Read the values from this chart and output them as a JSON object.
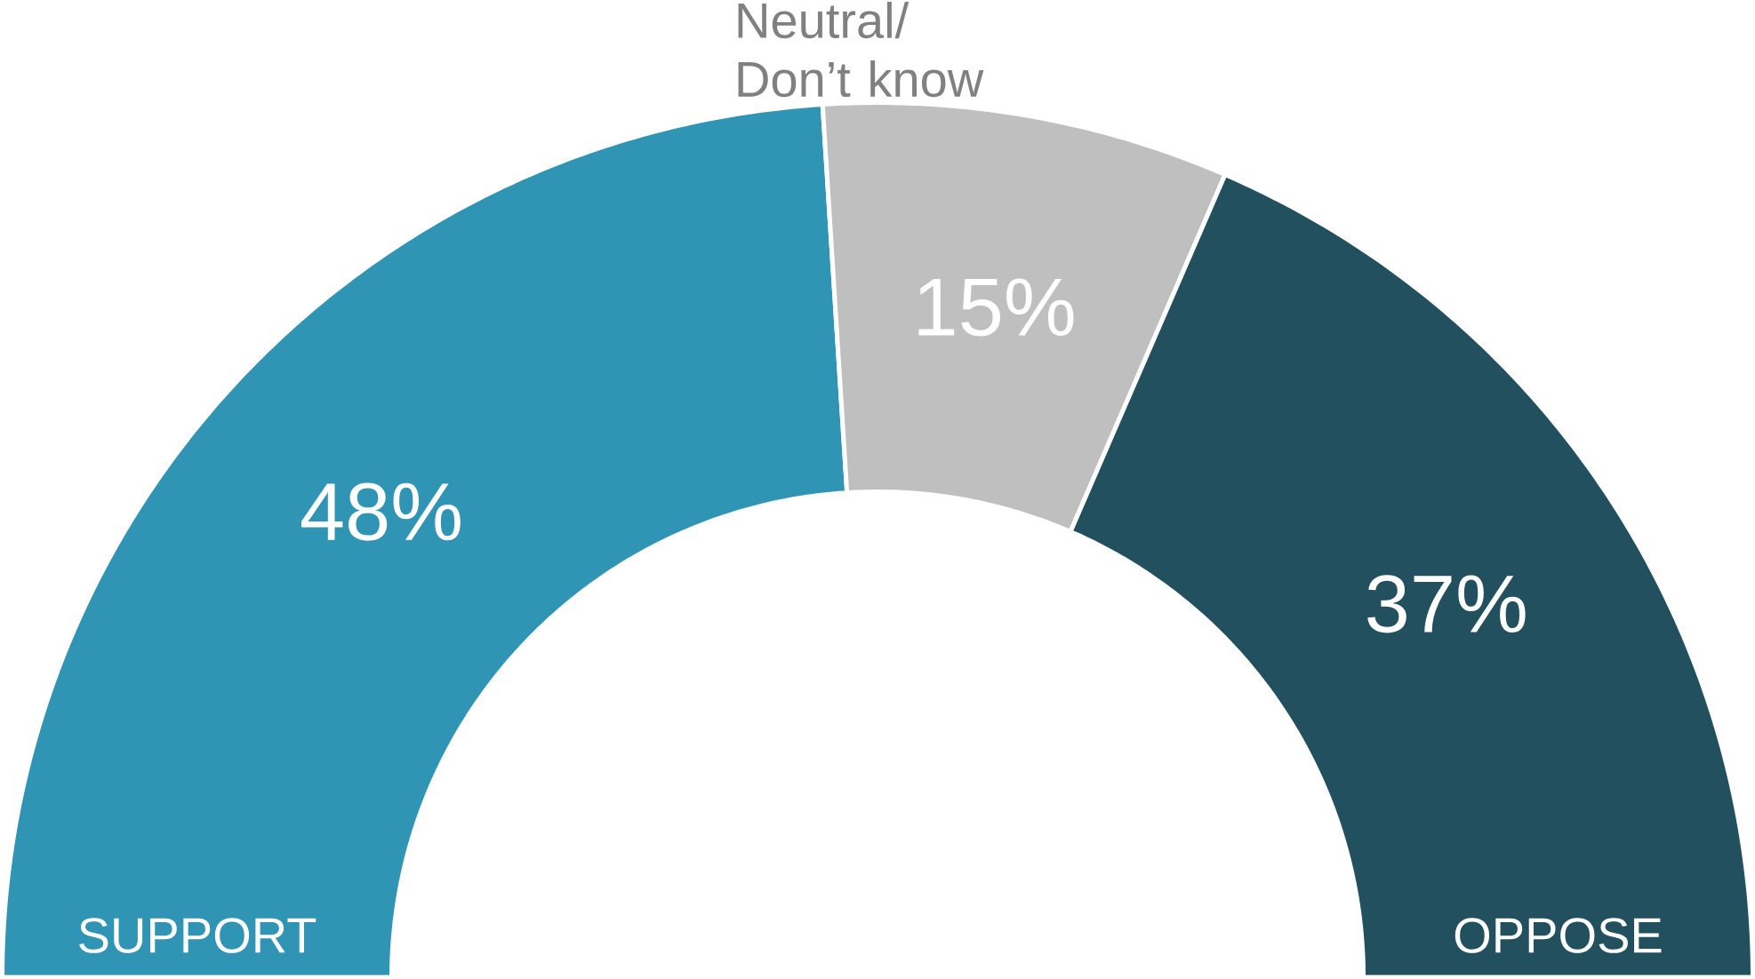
{
  "chart_data": {
    "type": "donut",
    "categories": [
      "SUPPORT",
      "Neutral/ Don’t know",
      "OPPOSE"
    ],
    "values": [
      48,
      15,
      37
    ],
    "value_labels": [
      "48%",
      "15%",
      "37%"
    ],
    "colors": [
      "#3095b4",
      "#bfbfbf",
      "#22505f"
    ]
  }
}
